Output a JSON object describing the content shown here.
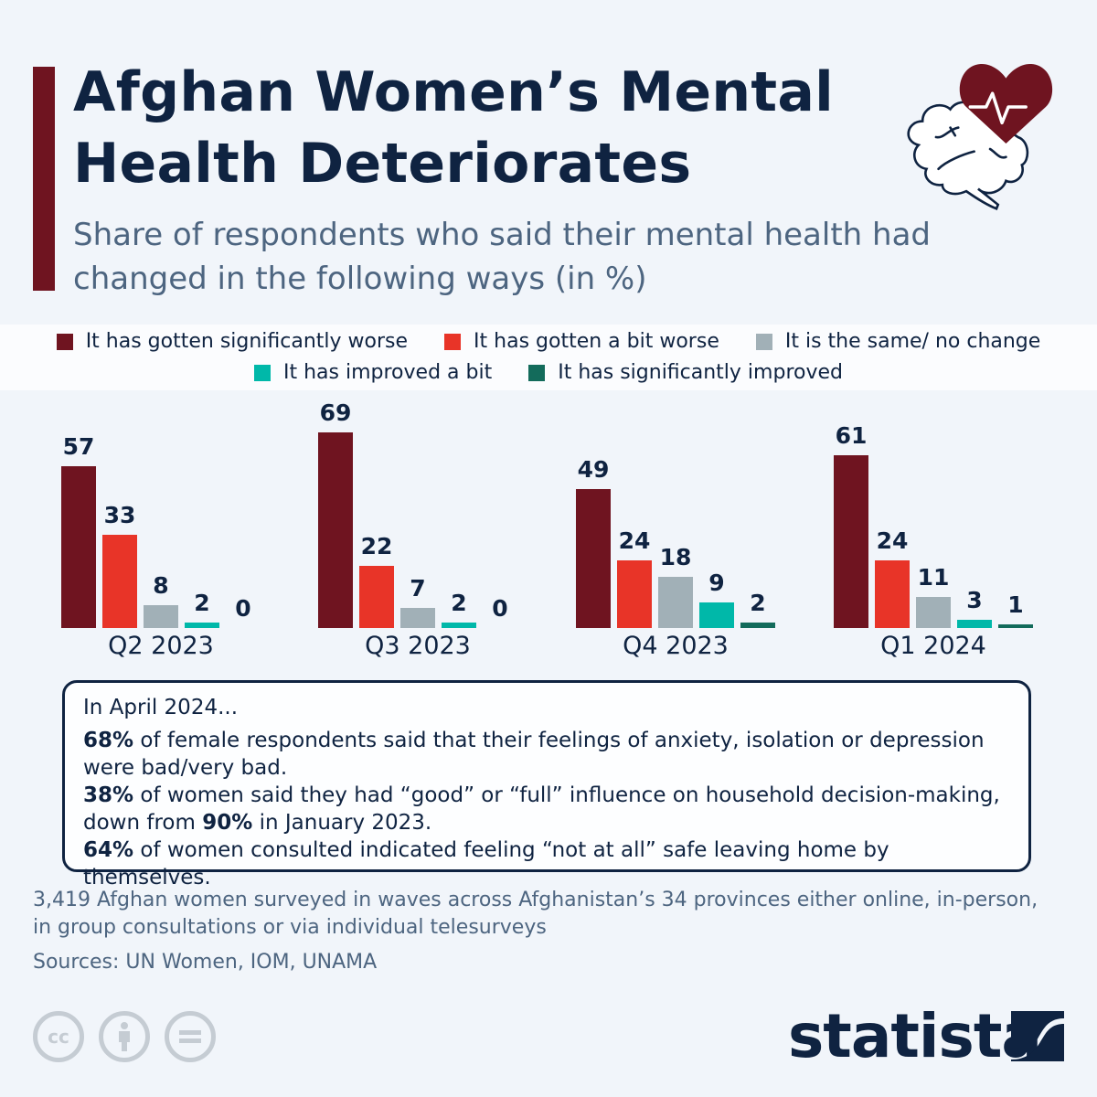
{
  "header": {
    "title": "Afghan Women’s Mental Health Deteriorates",
    "subtitle": "Share of respondents who said their mental health had changed in the following ways (in %)",
    "icon": "brain-heart-icon"
  },
  "legend": [
    {
      "label": "It has gotten significantly worse",
      "color": "#6f1420"
    },
    {
      "label": "It has gotten a bit worse",
      "color": "#e83428"
    },
    {
      "label": "It is the same/ no change",
      "color": "#a1b0b7"
    },
    {
      "label": "It has improved a bit",
      "color": "#00b8a9"
    },
    {
      "label": "It has significantly improved",
      "color": "#136b5b"
    }
  ],
  "chart_data": {
    "type": "bar",
    "title": "Afghan Women’s Mental Health Deteriorates",
    "subtitle": "Share of respondents who said their mental health had changed in the following ways (in %)",
    "categories": [
      "Q2 2023",
      "Q3 2023",
      "Q4 2023",
      "Q1 2024"
    ],
    "series": [
      {
        "name": "It has gotten significantly worse",
        "color": "#6f1420",
        "values": [
          57,
          69,
          49,
          61
        ]
      },
      {
        "name": "It has gotten a bit worse",
        "color": "#e83428",
        "values": [
          33,
          22,
          24,
          24
        ]
      },
      {
        "name": "It is the same/ no change",
        "color": "#a1b0b7",
        "values": [
          8,
          7,
          18,
          11
        ]
      },
      {
        "name": "It has improved a bit",
        "color": "#00b8a9",
        "values": [
          2,
          2,
          9,
          3
        ]
      },
      {
        "name": "It has significantly improved",
        "color": "#136b5b",
        "values": [
          0,
          0,
          2,
          1
        ]
      }
    ],
    "xlabel": "",
    "ylabel": "%",
    "ylim": [
      0,
      75
    ],
    "grid": false,
    "legend_position": "top"
  },
  "info_box": {
    "lead": "In April 2024...",
    "items": [
      {
        "bold": "68%",
        "text": " of female respondents said that their feelings of anxiety, isolation or depression were bad/very bad."
      },
      {
        "bold": "38%",
        "text": " of women said they had “good” or “full” influence on household decision-making, down from ",
        "bold2": "90%",
        "text2": " in January 2023."
      },
      {
        "bold": "64%",
        "text": " of women consulted indicated feeling “not at all” safe leaving home by themselves."
      }
    ]
  },
  "notes": {
    "description": "3,419 Afghan women surveyed in waves across Afghanistan’s 34 provinces either online, in-person, in group consultations or via individual telesurveys",
    "sources": "Sources: UN Women, IOM, UNAMA"
  },
  "footer": {
    "license_icons": [
      "cc-icon",
      "attribution-icon",
      "no-derivatives-icon"
    ],
    "cc_label": "cc",
    "brand": "statista"
  }
}
